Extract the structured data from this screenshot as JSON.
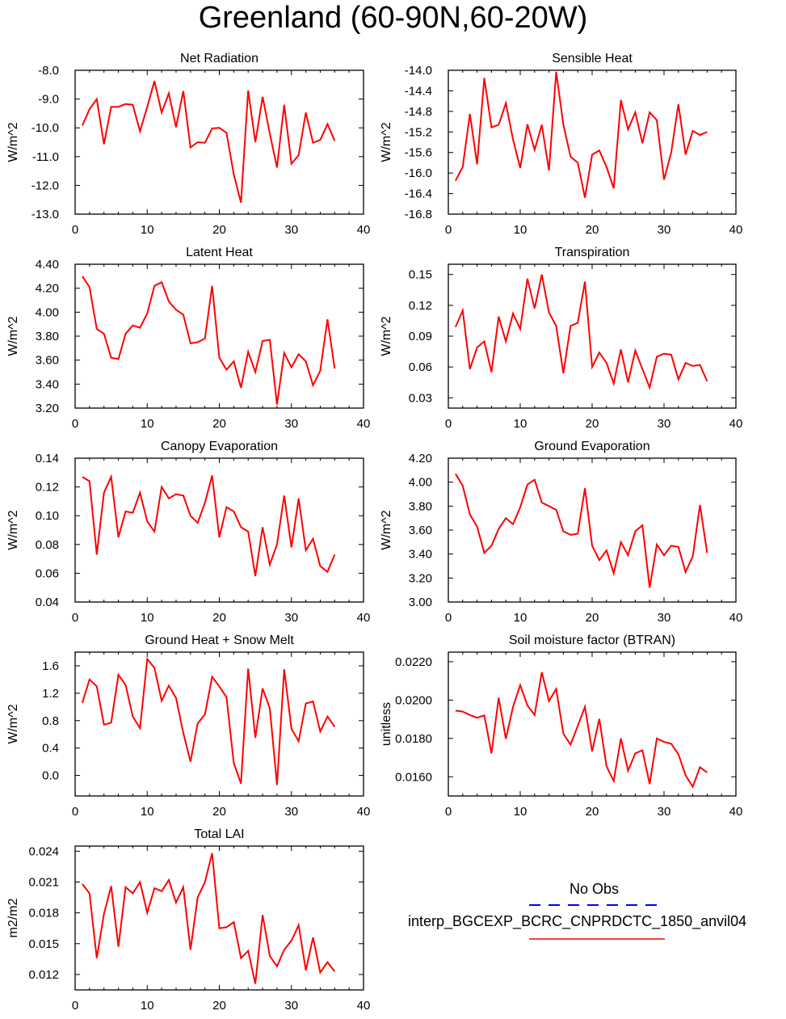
{
  "figure": {
    "title": "Greenland (60-90N,60-20W)",
    "line_color": "#ff0000",
    "obs_color": "#0000ff",
    "legend": {
      "title": "No Obs",
      "entries": [
        {
          "label": "",
          "style": "dashed",
          "color": "#0000ff"
        },
        {
          "label": "interp_BGCEXP_BCRC_CNPRDCTC_1850_anvil04",
          "style": "solid",
          "color": "#ff0000"
        }
      ]
    }
  },
  "chart_data": [
    {
      "type": "line",
      "title": "Net Radiation",
      "ylabel": "W/m^2",
      "xlim": [
        0,
        40
      ],
      "xticks": [
        "0",
        "10",
        "20",
        "30",
        "40"
      ],
      "ylim": [
        -13,
        -8
      ],
      "yticks": [
        -8,
        -9,
        -10,
        -11,
        -12,
        -13
      ],
      "ytick_labels": [
        "-8.0",
        "-9.0",
        "-10.0",
        "-11.0",
        "-12.0",
        "-13.0"
      ],
      "x": [
        1,
        2,
        3,
        4,
        5,
        6,
        7,
        8,
        9,
        10,
        11,
        12,
        13,
        14,
        15,
        16,
        17,
        18,
        19,
        20,
        21,
        22,
        23,
        24,
        25,
        26,
        27,
        28,
        29,
        30,
        31,
        32,
        33,
        34,
        35,
        36
      ],
      "values": [
        -9.92,
        -9.35,
        -9.0,
        -10.57,
        -9.27,
        -9.27,
        -9.17,
        -9.2,
        -10.12,
        -9.27,
        -8.37,
        -9.47,
        -8.8,
        -9.98,
        -8.72,
        -10.68,
        -10.5,
        -10.52,
        -10.02,
        -10.0,
        -10.17,
        -11.62,
        -12.6,
        -8.7,
        -10.5,
        -8.92,
        -10.2,
        -11.38,
        -9.2,
        -11.25,
        -10.95,
        -9.47,
        -10.52,
        -10.42,
        -9.87,
        -10.45
      ]
    },
    {
      "type": "line",
      "title": "Sensible Heat",
      "ylabel": "W/m^2",
      "xlim": [
        0,
        40
      ],
      "xticks": [
        "0",
        "10",
        "20",
        "30",
        "40"
      ],
      "ylim": [
        -16.8,
        -14.0
      ],
      "yticks": [
        -14.0,
        -14.4,
        -14.8,
        -15.2,
        -15.6,
        -16.0,
        -16.4,
        -16.8
      ],
      "ytick_labels": [
        "-14.0",
        "-14.4",
        "-14.8",
        "-15.2",
        "-15.6",
        "-16.0",
        "-16.4",
        "-16.8"
      ],
      "x": [
        1,
        2,
        3,
        4,
        5,
        6,
        7,
        8,
        9,
        10,
        11,
        12,
        13,
        14,
        15,
        16,
        17,
        18,
        19,
        20,
        21,
        22,
        23,
        24,
        25,
        26,
        27,
        28,
        29,
        30,
        31,
        32,
        33,
        34,
        35,
        36
      ],
      "values": [
        -16.15,
        -15.88,
        -14.85,
        -15.83,
        -14.15,
        -15.11,
        -15.06,
        -14.64,
        -15.35,
        -15.9,
        -15.05,
        -15.55,
        -15.06,
        -15.95,
        -14.03,
        -15.06,
        -15.68,
        -15.8,
        -16.48,
        -15.64,
        -15.56,
        -15.88,
        -16.3,
        -14.58,
        -15.15,
        -14.82,
        -15.42,
        -14.82,
        -14.97,
        -16.13,
        -15.6,
        -14.66,
        -15.64,
        -15.18,
        -15.26,
        -15.2
      ]
    },
    {
      "type": "line",
      "title": "Latent Heat",
      "ylabel": "W/m^2",
      "xlim": [
        0,
        40
      ],
      "xticks": [
        "0",
        "10",
        "20",
        "30",
        "40"
      ],
      "ylim": [
        3.2,
        4.4
      ],
      "yticks": [
        4.4,
        4.2,
        4.0,
        3.8,
        3.6,
        3.4,
        3.2
      ],
      "ytick_labels": [
        "4.40",
        "4.20",
        "4.00",
        "3.80",
        "3.60",
        "3.40",
        "3.20"
      ],
      "x": [
        1,
        2,
        3,
        4,
        5,
        6,
        7,
        8,
        9,
        10,
        11,
        12,
        13,
        14,
        15,
        16,
        17,
        18,
        19,
        20,
        21,
        22,
        23,
        24,
        25,
        26,
        27,
        28,
        29,
        30,
        31,
        32,
        33,
        34,
        35,
        36
      ],
      "values": [
        4.3,
        4.21,
        3.86,
        3.82,
        3.62,
        3.61,
        3.82,
        3.89,
        3.87,
        3.99,
        4.22,
        4.25,
        4.09,
        4.02,
        3.98,
        3.74,
        3.75,
        3.78,
        4.22,
        3.62,
        3.52,
        3.59,
        3.37,
        3.67,
        3.5,
        3.76,
        3.77,
        3.23,
        3.66,
        3.54,
        3.65,
        3.59,
        3.39,
        3.51,
        3.94,
        3.53
      ]
    },
    {
      "type": "line",
      "title": "Transpiration",
      "ylabel": "W/m^2",
      "xlim": [
        0,
        40
      ],
      "xticks": [
        "0",
        "10",
        "20",
        "30",
        "40"
      ],
      "ylim": [
        0.02,
        0.16
      ],
      "yticks": [
        0.15,
        0.12,
        0.09,
        0.06,
        0.03
      ],
      "ytick_labels": [
        "0.15",
        "0.12",
        "0.09",
        "0.06",
        "0.03"
      ],
      "x": [
        1,
        2,
        3,
        4,
        5,
        6,
        7,
        8,
        9,
        10,
        11,
        12,
        13,
        14,
        15,
        16,
        17,
        18,
        19,
        20,
        21,
        22,
        23,
        24,
        25,
        26,
        27,
        28,
        29,
        30,
        31,
        32,
        33,
        34,
        35,
        36
      ],
      "values": [
        0.099,
        0.115,
        0.058,
        0.079,
        0.085,
        0.055,
        0.109,
        0.085,
        0.112,
        0.097,
        0.146,
        0.117,
        0.15,
        0.113,
        0.1,
        0.054,
        0.1,
        0.103,
        0.143,
        0.06,
        0.074,
        0.064,
        0.044,
        0.077,
        0.045,
        0.076,
        0.058,
        0.04,
        0.07,
        0.073,
        0.072,
        0.048,
        0.064,
        0.061,
        0.062,
        0.046
      ]
    },
    {
      "type": "line",
      "title": "Canopy Evaporation",
      "ylabel": "W/m^2",
      "xlim": [
        0,
        40
      ],
      "xticks": [
        "0",
        "10",
        "20",
        "30",
        "40"
      ],
      "ylim": [
        0.04,
        0.14
      ],
      "yticks": [
        0.14,
        0.12,
        0.1,
        0.08,
        0.06,
        0.04
      ],
      "ytick_labels": [
        "0.14",
        "0.12",
        "0.10",
        "0.08",
        "0.06",
        "0.04"
      ],
      "x": [
        1,
        2,
        3,
        4,
        5,
        6,
        7,
        8,
        9,
        10,
        11,
        12,
        13,
        14,
        15,
        16,
        17,
        18,
        19,
        20,
        21,
        22,
        23,
        24,
        25,
        26,
        27,
        28,
        29,
        30,
        31,
        32,
        33,
        34,
        35,
        36
      ],
      "values": [
        0.127,
        0.124,
        0.073,
        0.116,
        0.127,
        0.085,
        0.103,
        0.102,
        0.116,
        0.096,
        0.089,
        0.12,
        0.112,
        0.115,
        0.114,
        0.1,
        0.095,
        0.109,
        0.128,
        0.085,
        0.106,
        0.103,
        0.092,
        0.089,
        0.058,
        0.092,
        0.066,
        0.08,
        0.114,
        0.078,
        0.112,
        0.076,
        0.084,
        0.065,
        0.061,
        0.073
      ]
    },
    {
      "type": "line",
      "title": "Ground Evaporation",
      "ylabel": "W/m^2",
      "xlim": [
        0,
        40
      ],
      "xticks": [
        "0",
        "10",
        "20",
        "30",
        "40"
      ],
      "ylim": [
        3.0,
        4.2
      ],
      "yticks": [
        4.2,
        4.0,
        3.8,
        3.6,
        3.4,
        3.2,
        3.0
      ],
      "ytick_labels": [
        "4.20",
        "4.00",
        "3.80",
        "3.60",
        "3.40",
        "3.20",
        "3.00"
      ],
      "x": [
        1,
        2,
        3,
        4,
        5,
        6,
        7,
        8,
        9,
        10,
        11,
        12,
        13,
        14,
        15,
        16,
        17,
        18,
        19,
        20,
        21,
        22,
        23,
        24,
        25,
        26,
        27,
        28,
        29,
        30,
        31,
        32,
        33,
        34,
        35,
        36
      ],
      "values": [
        4.07,
        3.97,
        3.73,
        3.63,
        3.41,
        3.47,
        3.61,
        3.7,
        3.65,
        3.79,
        3.98,
        4.02,
        3.83,
        3.8,
        3.77,
        3.59,
        3.56,
        3.57,
        3.95,
        3.47,
        3.35,
        3.43,
        3.24,
        3.5,
        3.39,
        3.59,
        3.64,
        3.12,
        3.48,
        3.39,
        3.47,
        3.46,
        3.25,
        3.38,
        3.81,
        3.41
      ]
    },
    {
      "type": "line",
      "title": "Ground Heat + Snow Melt",
      "ylabel": "W/m^2",
      "xlim": [
        0,
        40
      ],
      "xticks": [
        "0",
        "10",
        "20",
        "30",
        "40"
      ],
      "ylim": [
        -0.3,
        1.8
      ],
      "yticks": [
        1.6,
        1.2,
        0.8,
        0.4,
        0.0
      ],
      "ytick_labels": [
        "1.6",
        "1.2",
        "0.8",
        "0.4",
        "0.0"
      ],
      "x": [
        1,
        2,
        3,
        4,
        5,
        6,
        7,
        8,
        9,
        10,
        11,
        12,
        13,
        14,
        15,
        16,
        17,
        18,
        19,
        20,
        21,
        22,
        23,
        24,
        25,
        26,
        27,
        28,
        29,
        30,
        31,
        32,
        33,
        34,
        35,
        36
      ],
      "values": [
        1.06,
        1.4,
        1.3,
        0.74,
        0.77,
        1.47,
        1.32,
        0.86,
        0.69,
        1.7,
        1.57,
        1.09,
        1.31,
        1.13,
        0.62,
        0.2,
        0.76,
        0.89,
        1.44,
        1.3,
        1.14,
        0.18,
        -0.12,
        1.56,
        0.55,
        1.27,
        0.98,
        -0.14,
        1.55,
        0.68,
        0.5,
        1.05,
        1.08,
        0.64,
        0.86,
        0.71
      ]
    },
    {
      "type": "line",
      "title": "Soil moisture factor (BTRAN)",
      "ylabel": "unitless",
      "xlim": [
        0,
        40
      ],
      "xticks": [
        "0",
        "10",
        "20",
        "30",
        "40"
      ],
      "ylim": [
        0.015,
        0.0225
      ],
      "yticks": [
        0.022,
        0.02,
        0.018,
        0.016
      ],
      "ytick_labels": [
        "0.0220",
        "0.0200",
        "0.0180",
        "0.0160"
      ],
      "x": [
        1,
        2,
        3,
        4,
        5,
        6,
        7,
        8,
        9,
        10,
        11,
        12,
        13,
        14,
        15,
        16,
        17,
        18,
        19,
        20,
        21,
        22,
        23,
        24,
        25,
        26,
        27,
        28,
        29,
        30,
        31,
        32,
        33,
        34,
        35,
        36
      ],
      "values": [
        0.01945,
        0.0194,
        0.01922,
        0.01908,
        0.0192,
        0.01722,
        0.02012,
        0.01798,
        0.01965,
        0.02078,
        0.01972,
        0.01922,
        0.02145,
        0.01995,
        0.02058,
        0.01825,
        0.01768,
        0.01865,
        0.01965,
        0.01732,
        0.01902,
        0.01655,
        0.01578,
        0.018,
        0.01632,
        0.01722,
        0.01738,
        0.01562,
        0.018,
        0.01782,
        0.01772,
        0.01718,
        0.01608,
        0.01548,
        0.0165,
        0.01622
      ]
    },
    {
      "type": "line",
      "title": "Total LAI",
      "ylabel": "m2/m2",
      "xlim": [
        0,
        40
      ],
      "xticks": [
        "0",
        "10",
        "20",
        "30",
        "40"
      ],
      "ylim": [
        0.0105,
        0.0245
      ],
      "yticks": [
        0.024,
        0.021,
        0.018,
        0.015,
        0.012
      ],
      "ytick_labels": [
        "0.024",
        "0.021",
        "0.018",
        "0.015",
        "0.012"
      ],
      "x": [
        1,
        2,
        3,
        4,
        5,
        6,
        7,
        8,
        9,
        10,
        11,
        12,
        13,
        14,
        15,
        16,
        17,
        18,
        19,
        20,
        21,
        22,
        23,
        24,
        25,
        26,
        27,
        28,
        29,
        30,
        31,
        32,
        33,
        34,
        35,
        36
      ],
      "values": [
        0.0208,
        0.0199,
        0.0136,
        0.0179,
        0.0206,
        0.0147,
        0.0205,
        0.0199,
        0.021,
        0.018,
        0.0204,
        0.0201,
        0.0212,
        0.019,
        0.0205,
        0.0144,
        0.0195,
        0.021,
        0.0238,
        0.0165,
        0.0166,
        0.0171,
        0.0136,
        0.0143,
        0.0111,
        0.0178,
        0.0138,
        0.0128,
        0.0144,
        0.0153,
        0.0168,
        0.0124,
        0.0156,
        0.0122,
        0.0132,
        0.0123
      ]
    }
  ]
}
